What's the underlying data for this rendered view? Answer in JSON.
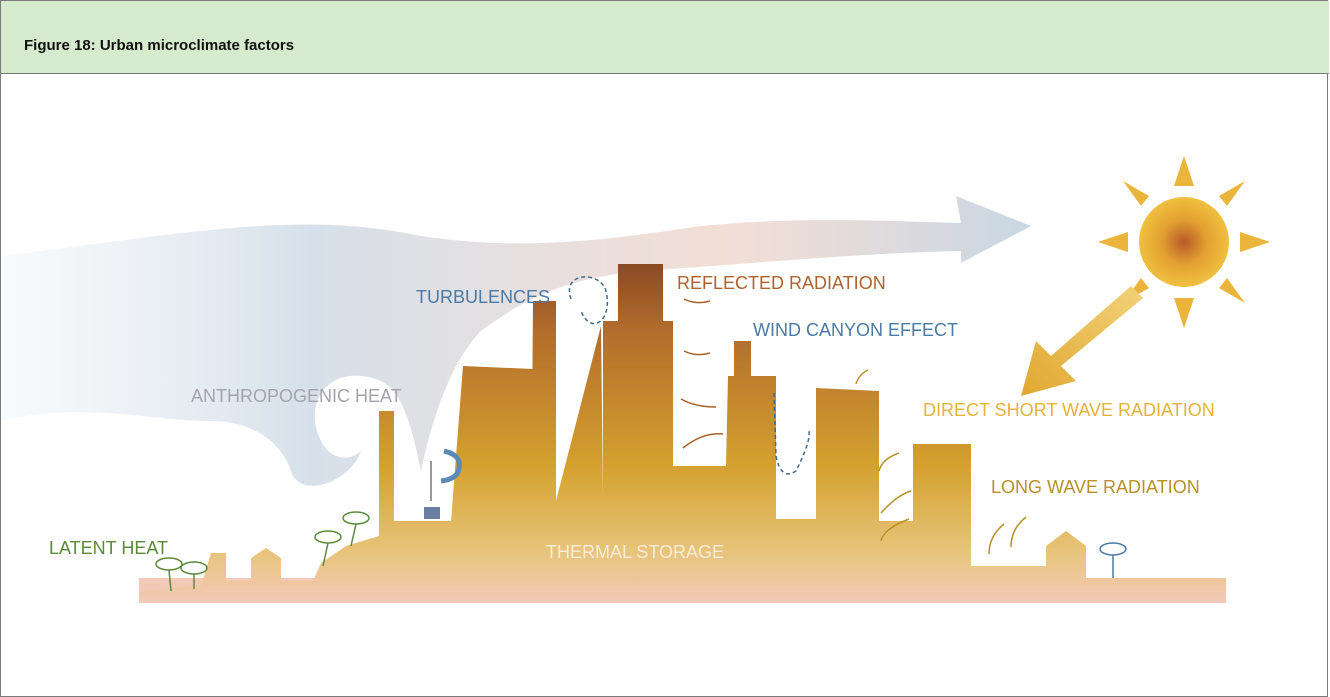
{
  "header": {
    "title": "Figure 18: Urban microclimate factors"
  },
  "labels": [
    "TURBULENCES",
    "REFLECTED RADIATION",
    "WIND CANYON EFFECT",
    "ANTHROPOGENIC HEAT",
    "DIRECT SHORT WAVE RADIATION",
    "LONG WAVE RADIATION",
    "LATENT HEAT",
    "THERMAL STORAGE"
  ]
}
